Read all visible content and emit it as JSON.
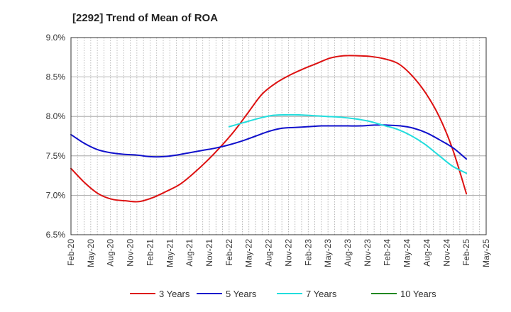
{
  "chart_data": {
    "type": "line",
    "title": "[2292]  Trend of Mean of ROA",
    "xlabel": "",
    "ylabel": "",
    "ylim": [
      6.5,
      9.0
    ],
    "yticks": [
      6.5,
      7.0,
      7.5,
      8.0,
      8.5,
      9.0
    ],
    "ytick_labels": [
      "6.5%",
      "7.0%",
      "7.5%",
      "8.0%",
      "8.5%",
      "9.0%"
    ],
    "x_labels": [
      "Feb-20",
      "May-20",
      "Aug-20",
      "Nov-20",
      "Feb-21",
      "May-21",
      "Aug-21",
      "Nov-21",
      "Feb-22",
      "May-22",
      "Aug-22",
      "Nov-22",
      "Feb-23",
      "May-23",
      "Aug-23",
      "Nov-23",
      "Feb-24",
      "May-24",
      "Aug-24",
      "Nov-24",
      "Feb-25",
      "May-25"
    ],
    "grid": true,
    "legend_position": "bottom",
    "series": [
      {
        "name": "3 Years",
        "color": "#dd1111",
        "values": [
          7.34,
          7.16,
          7.02,
          6.95,
          6.93,
          6.92,
          6.97,
          7.05,
          7.14,
          7.28,
          7.44,
          7.62,
          7.82,
          8.05,
          8.28,
          8.42,
          8.52,
          8.6,
          8.67,
          8.74,
          8.77,
          8.77,
          8.76,
          8.73,
          8.67,
          8.52,
          8.3,
          8.0,
          7.58,
          7.02
        ]
      },
      {
        "name": "5 Years",
        "color": "#1111cc",
        "values": [
          7.77,
          7.66,
          7.58,
          7.54,
          7.52,
          7.51,
          7.49,
          7.49,
          7.51,
          7.54,
          7.57,
          7.6,
          7.64,
          7.69,
          7.75,
          7.81,
          7.85,
          7.86,
          7.87,
          7.88,
          7.88,
          7.88,
          7.88,
          7.89,
          7.89,
          7.88,
          7.85,
          7.79,
          7.7,
          7.6,
          7.46
        ],
        "x_offset": -1
      },
      {
        "name": "7 Years",
        "color": "#22dddd",
        "values": [
          7.87,
          7.92,
          7.97,
          8.01,
          8.02,
          8.02,
          8.01,
          8.0,
          7.99,
          7.97,
          7.94,
          7.89,
          7.84,
          7.76,
          7.65,
          7.51,
          7.37,
          7.28
        ],
        "start_index": 8
      },
      {
        "name": "10 Years",
        "color": "#228822",
        "values": []
      }
    ]
  }
}
